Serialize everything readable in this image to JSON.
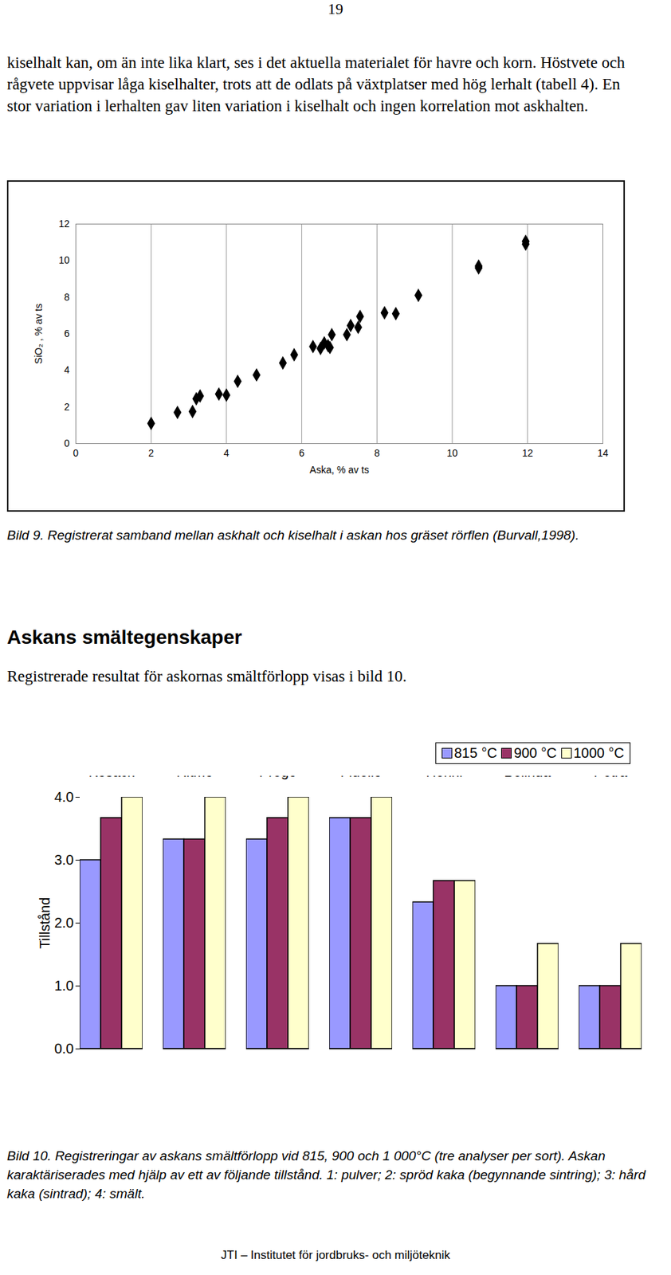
{
  "page_number": "19",
  "intro_text": "kiselhalt kan, om än inte lika klart, ses i det aktuella materialet för havre och korn. Höstvete och rågvete uppvisar låga kiselhalter, trots att de odlats på växtplatser med hög lerhalt (tabell 4). En stor variation i lerhalten gav liten variation i kiselhalt och ingen korrelation mot askhalten.",
  "heading": "Askans smältegenskaper",
  "text": "Registrerade resultat för askornas smältförlopp visas i bild 10.",
  "footer": "JTI – Institutet för jordbruks- och miljöteknik",
  "chart_data": [
    {
      "type": "scatter",
      "caption": "Bild 9. Registrerat samband mellan askhalt och kiselhalt i askan hos gräset rörflen (Burvall,1998).",
      "x_label": "Aska, % av ts",
      "y_label": "SiO₂ , % av ts",
      "x": [
        2.0,
        2.7,
        3.1,
        3.2,
        3.3,
        3.8,
        4.0,
        4.3,
        4.8,
        5.5,
        5.8,
        6.3,
        6.5,
        6.6,
        6.7,
        6.75,
        6.8,
        7.2,
        7.3,
        7.5,
        7.55,
        8.2,
        8.5,
        9.1,
        10.7,
        10.7,
        11.95,
        11.95
      ],
      "values": [
        1.1,
        1.7,
        1.75,
        2.45,
        2.6,
        2.7,
        2.65,
        3.4,
        3.75,
        4.4,
        4.85,
        5.3,
        5.2,
        5.5,
        5.35,
        5.25,
        5.95,
        5.95,
        6.45,
        6.35,
        6.95,
        7.15,
        7.1,
        8.1,
        9.7,
        9.6,
        11.05,
        10.9
      ],
      "color": "#000000",
      "marker": "diamond",
      "xlim": [
        0,
        14
      ],
      "xticks": [
        0,
        2,
        4,
        6,
        8,
        10,
        12,
        14
      ],
      "ylim": [
        0,
        12
      ],
      "yticks": [
        0,
        2,
        4,
        6,
        8,
        10,
        12
      ],
      "grid": "x"
    },
    {
      "type": "bar",
      "caption": "Bild 10. Registreringar av askans smältförlopp vid 815, 900 och 1 000°C (tre analyser per sort). Askan karaktäriserades med hjälp av ett av följande tillstånd. 1: pulver; 2: spröd kaka (begynnande sintring); 3: hård kaka (sintrad); 4: smält.",
      "y_label": "Tillstånd",
      "categories": [
        "Höstvete\nKosack",
        "Höstvete\nRitmo",
        "Rågvete\nPrego",
        "Rågvete\nFidelio",
        "Korn\nHenni",
        "Havre\nBelinda",
        "Havre\nPetra"
      ],
      "series": [
        {
          "name": "815 °C",
          "color": "#9999ff",
          "values": [
            3,
            3.33,
            3.33,
            3.67,
            2.33,
            1,
            1
          ]
        },
        {
          "name": "900 °C",
          "color": "#993366",
          "values": [
            3.67,
            3.33,
            3.67,
            3.67,
            2.67,
            1,
            1
          ]
        },
        {
          "name": "1000 °C",
          "color": "#ffffcc",
          "values": [
            4,
            4,
            4,
            4,
            2.67,
            1.67,
            1.67
          ]
        }
      ],
      "ylim": [
        0,
        4
      ],
      "yticks": [
        0,
        1,
        2,
        3,
        4
      ],
      "legend": "top-right",
      "grid": false
    }
  ]
}
